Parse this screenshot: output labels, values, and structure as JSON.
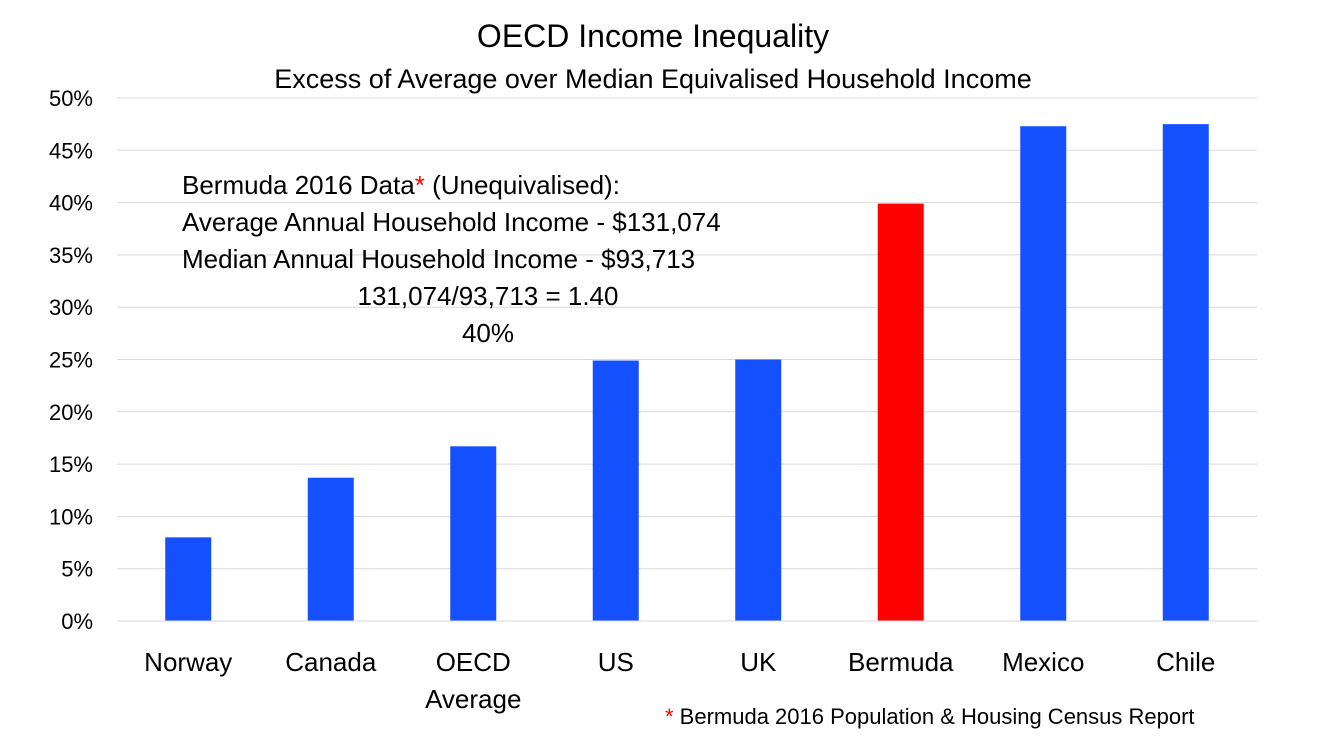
{
  "chart_data": {
    "type": "bar",
    "title": "OECD Income Inequality",
    "subtitle": "Excess of Average over Median Equivalised Household Income",
    "xlabel": "",
    "ylabel": "",
    "categories": [
      [
        "Norway"
      ],
      [
        "Canada"
      ],
      [
        "OECD",
        "Average"
      ],
      [
        "US"
      ],
      [
        "UK"
      ],
      [
        "Bermuda"
      ],
      [
        "Mexico"
      ],
      [
        "Chile"
      ]
    ],
    "values": [
      8,
      13.7,
      16.7,
      24.9,
      25.0,
      39.9,
      47.3,
      47.5
    ],
    "bar_colors": [
      "#1550FF",
      "#1550FF",
      "#1550FF",
      "#1550FF",
      "#1550FF",
      "#FF0000",
      "#1550FF",
      "#1550FF"
    ],
    "ylim": [
      0,
      50
    ],
    "yticks": [
      0,
      5,
      10,
      15,
      20,
      25,
      30,
      35,
      40,
      45,
      50
    ],
    "ytick_suffix": "%",
    "grid": true,
    "annotation": {
      "line1_text": "Bermuda 2016 Data",
      "line1_asterisk": "*",
      "line1_tail": " (Unequivalised):",
      "line2": "Average Annual Household Income - $131,074",
      "line3": "Median Annual Household Income - $93,713",
      "line4": "131,074/93,713 = 1.40",
      "line5": "40%"
    },
    "footnote": {
      "asterisk": "*",
      "text": " Bermuda 2016 Population & Housing Census Report"
    },
    "accent_color": "#FF0000",
    "series_color": "#1550FF",
    "grid_color": "#d9d9d9"
  }
}
